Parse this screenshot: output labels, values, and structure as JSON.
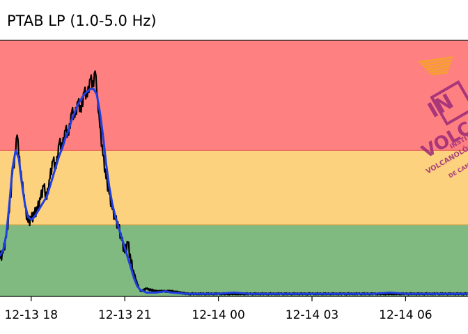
{
  "chart_data": {
    "type": "line",
    "title": "PTAB LP (1.0-5.0 Hz)",
    "xlabel": "",
    "ylabel": "",
    "x_tick_labels": [
      "12-13 18",
      "12-13 21",
      "12-14 00",
      "12-14 03",
      "12-14 06"
    ],
    "x_ticks_hours": [
      18,
      21,
      24,
      27,
      30
    ],
    "xlim_hours": [
      17.0,
      32.0
    ],
    "ylim": [
      0,
      100
    ],
    "grid": false,
    "bands": [
      {
        "level": "red",
        "from": 57,
        "to": 100,
        "color": "#ff8080"
      },
      {
        "level": "yellow",
        "from": 28,
        "to": 57,
        "color": "#fdd27f"
      },
      {
        "level": "green",
        "from": 0,
        "to": 28,
        "color": "#80ba80"
      }
    ],
    "series": [
      {
        "color": "#000000",
        "x": [
          17.0,
          17.1,
          17.2,
          17.3,
          17.4,
          17.5,
          17.55,
          17.6,
          17.7,
          17.75,
          17.8,
          17.85,
          17.9,
          18.0,
          18.1,
          18.2,
          18.3,
          18.4,
          18.5,
          18.6,
          18.7,
          18.8,
          18.9,
          19.0,
          19.1,
          19.2,
          19.3,
          19.4,
          19.5,
          19.6,
          19.7,
          19.8,
          19.9,
          20.0,
          20.05,
          20.1,
          20.15,
          20.2,
          20.3,
          20.4,
          20.5,
          20.6,
          20.7,
          20.8,
          20.9,
          21.0,
          21.1,
          21.2,
          21.3,
          21.4,
          21.5,
          21.7,
          22.0,
          22.5,
          23.0,
          24.0,
          25.0,
          26.0,
          27.0,
          28.0,
          28.5,
          29.0,
          30.0,
          31.0,
          32.0
        ],
        "y": [
          15,
          17,
          23,
          33,
          48,
          56,
          63,
          55,
          45,
          40,
          35,
          30,
          29,
          30,
          32,
          34,
          38,
          43,
          38,
          46,
          53,
          50,
          60,
          58,
          65,
          63,
          72,
          70,
          76,
          72,
          80,
          78,
          85,
          82,
          88,
          80,
          72,
          66,
          55,
          46,
          40,
          34,
          30,
          27,
          22,
          17,
          21,
          13,
          9,
          5,
          2,
          3,
          2,
          2,
          1,
          1,
          1,
          1,
          1,
          1,
          1,
          1,
          1,
          1,
          1
        ]
      },
      {
        "color": "#1f3fe0",
        "x": [
          17.0,
          17.1,
          17.2,
          17.3,
          17.4,
          17.5,
          17.6,
          17.7,
          17.8,
          17.9,
          18.0,
          18.1,
          18.2,
          18.3,
          18.4,
          18.5,
          18.6,
          18.7,
          18.8,
          18.9,
          19.0,
          19.1,
          19.2,
          19.3,
          19.4,
          19.5,
          19.6,
          19.7,
          19.8,
          19.9,
          20.0,
          20.1,
          20.2,
          20.3,
          20.4,
          20.5,
          20.6,
          20.7,
          20.8,
          20.9,
          21.0,
          21.1,
          21.2,
          21.3,
          21.4,
          21.5,
          21.7,
          22.0,
          22.3,
          22.5,
          23.0,
          24.0,
          24.5,
          25.0,
          26.0,
          27.0,
          28.0,
          29.0,
          29.5,
          30.0,
          31.0,
          32.0
        ],
        "y": [
          16,
          18,
          24,
          36,
          50,
          57,
          54,
          44,
          36,
          31,
          30,
          31,
          33,
          35,
          37,
          39,
          43,
          47,
          51,
          55,
          58,
          62,
          65,
          69,
          72,
          75,
          77,
          79,
          80,
          81,
          81,
          79,
          72,
          63,
          52,
          43,
          36,
          31,
          27,
          23,
          19,
          15,
          11,
          7,
          4,
          2.5,
          1.5,
          1.5,
          2,
          1.5,
          1,
          1,
          1.5,
          1,
          1,
          1,
          1,
          1,
          1.5,
          1,
          1,
          1
        ]
      }
    ]
  },
  "logo": {
    "text_main": "IN",
    "text_volcan": "VOLCAN",
    "text_inst": "INSTITUTO",
    "text_volcano": "VOLCANOLÓGICO",
    "text_de": "DE CANARIAS"
  }
}
